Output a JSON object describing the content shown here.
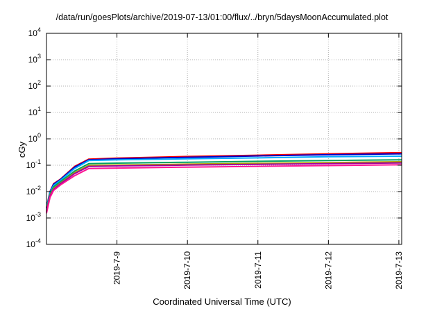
{
  "chart_data": {
    "type": "line",
    "title": "/data/run/goesPlots/archive/2019-07-13/01:00/flux/../bryn/5daysMoonAccumulated.plot",
    "xlabel": "Coordinated Universal Time (UTC)",
    "ylabel": "cGy",
    "yscale": "log",
    "ylim": [
      0.0001,
      10000
    ],
    "xlim": [
      0.0,
      5.04
    ],
    "y_ticks": [
      {
        "value": 0.0001,
        "base": "10",
        "exp": "-4"
      },
      {
        "value": 0.001,
        "base": "10",
        "exp": "-3"
      },
      {
        "value": 0.01,
        "base": "10",
        "exp": "-2"
      },
      {
        "value": 0.1,
        "base": "10",
        "exp": "-1"
      },
      {
        "value": 1,
        "base": "10",
        "exp": "0"
      },
      {
        "value": 10,
        "base": "10",
        "exp": "1"
      },
      {
        "value": 100,
        "base": "10",
        "exp": "2"
      },
      {
        "value": 1000,
        "base": "10",
        "exp": "3"
      },
      {
        "value": 10000,
        "base": "10",
        "exp": "4"
      }
    ],
    "x_ticks": [
      {
        "value": 1.0,
        "label": "2019-7-9"
      },
      {
        "value": 2.0,
        "label": "2019-7-10"
      },
      {
        "value": 3.0,
        "label": "2019-7-11"
      },
      {
        "value": 4.0,
        "label": "2019-7-12"
      },
      {
        "value": 5.0,
        "label": "2019-7-13"
      }
    ],
    "grid": true,
    "series": [
      {
        "color": "#ff0000",
        "x": [
          0.0,
          0.05,
          0.1,
          0.2,
          0.4,
          0.6,
          1.0,
          2.0,
          3.0,
          4.0,
          5.0,
          5.04
        ],
        "y": [
          0.0025,
          0.01,
          0.02,
          0.03,
          0.09,
          0.17,
          0.185,
          0.215,
          0.24,
          0.27,
          0.3,
          0.3
        ]
      },
      {
        "color": "#0000c8",
        "x": [
          0.0,
          0.05,
          0.1,
          0.2,
          0.4,
          0.6,
          1.0,
          2.0,
          3.0,
          4.0,
          5.0,
          5.04
        ],
        "y": [
          0.0024,
          0.0098,
          0.019,
          0.029,
          0.085,
          0.16,
          0.175,
          0.2,
          0.225,
          0.25,
          0.27,
          0.27
        ]
      },
      {
        "color": "#00aaff",
        "x": [
          0.0,
          0.05,
          0.1,
          0.2,
          0.4,
          0.6,
          1.0,
          2.0,
          3.0,
          4.0,
          5.0,
          5.04
        ],
        "y": [
          0.0022,
          0.009,
          0.017,
          0.027,
          0.075,
          0.15,
          0.16,
          0.175,
          0.19,
          0.21,
          0.22,
          0.22
        ]
      },
      {
        "color": "#00a060",
        "x": [
          0.0,
          0.05,
          0.1,
          0.2,
          0.4,
          0.6,
          1.0,
          2.0,
          3.0,
          4.0,
          5.0,
          5.04
        ],
        "y": [
          0.002,
          0.008,
          0.015,
          0.024,
          0.06,
          0.115,
          0.12,
          0.13,
          0.14,
          0.15,
          0.16,
          0.16
        ]
      },
      {
        "color": "#b0a000",
        "x": [
          0.0,
          0.05,
          0.1,
          0.2,
          0.4,
          0.6,
          1.0,
          2.0,
          3.0,
          4.0,
          5.0,
          5.04
        ],
        "y": [
          0.0018,
          0.0072,
          0.013,
          0.021,
          0.052,
          0.098,
          0.102,
          0.11,
          0.118,
          0.126,
          0.135,
          0.135
        ]
      },
      {
        "color": "#a000a0",
        "x": [
          0.0,
          0.05,
          0.1,
          0.2,
          0.4,
          0.6,
          1.0,
          2.0,
          3.0,
          4.0,
          5.0,
          5.04
        ],
        "y": [
          0.0017,
          0.0068,
          0.012,
          0.02,
          0.048,
          0.09,
          0.094,
          0.101,
          0.108,
          0.115,
          0.122,
          0.122
        ]
      },
      {
        "color": "#ff1493",
        "x": [
          0.0,
          0.05,
          0.1,
          0.2,
          0.4,
          0.6,
          1.0,
          2.0,
          3.0,
          4.0,
          5.0,
          5.04
        ],
        "y": [
          0.0015,
          0.006,
          0.011,
          0.018,
          0.04,
          0.075,
          0.078,
          0.085,
          0.091,
          0.097,
          0.104,
          0.104
        ]
      }
    ]
  }
}
